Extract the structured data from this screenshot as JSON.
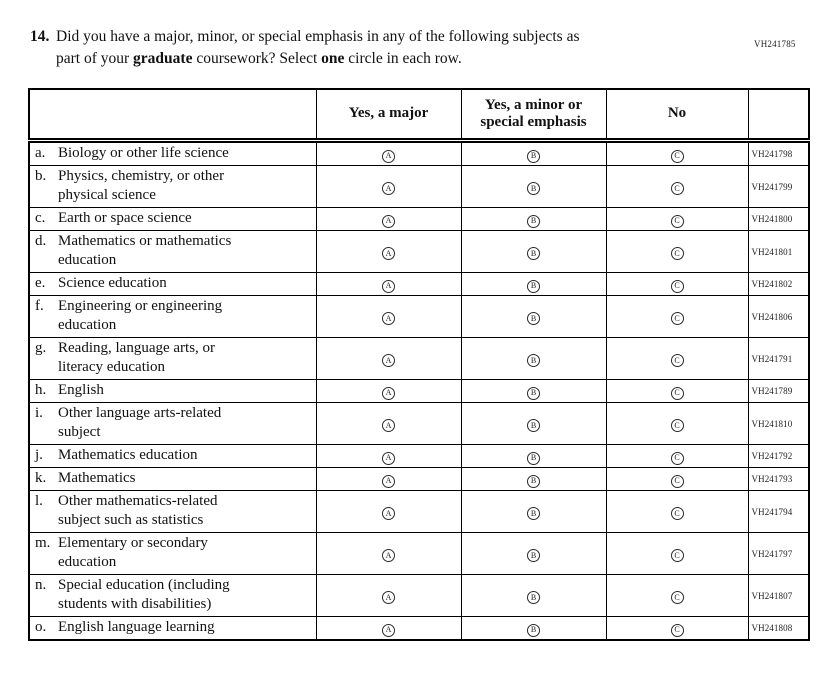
{
  "page_code": "VH241785",
  "question": {
    "number": "14.",
    "line1": "Did you have a major, minor, or special emphasis in any of the following subjects as",
    "line2_seg1": "part of your ",
    "line2_bold1": "graduate",
    "line2_seg2": " coursework? Select ",
    "line2_bold2": "one",
    "line2_seg3": " circle in each row."
  },
  "table": {
    "headers": {
      "subject": "",
      "major": "Yes, a major",
      "minor": "Yes, a minor or special emphasis",
      "no": "No",
      "code": ""
    },
    "options": {
      "major": "A",
      "minor": "B",
      "no": "C"
    },
    "rows": [
      {
        "prefix": "a.",
        "line1": "Biology or other life science",
        "line2": "",
        "code": "VH241798"
      },
      {
        "prefix": "b.",
        "line1": "Physics, chemistry, or other",
        "line2": "physical science",
        "code": "VH241799"
      },
      {
        "prefix": "c.",
        "line1": "Earth or space science",
        "line2": "",
        "code": "VH241800"
      },
      {
        "prefix": "d.",
        "line1": "Mathematics or mathematics",
        "line2": "education",
        "code": "VH241801"
      },
      {
        "prefix": "e.",
        "line1": "Science education",
        "line2": "",
        "code": "VH241802"
      },
      {
        "prefix": "f.",
        "line1": "Engineering or engineering",
        "line2": "education",
        "code": "VH241806"
      },
      {
        "prefix": "g.",
        "line1": "Reading, language arts, or",
        "line2": "literacy education",
        "code": "VH241791"
      },
      {
        "prefix": "h.",
        "line1": "English",
        "line2": "",
        "code": "VH241789"
      },
      {
        "prefix": "i.",
        "line1": "Other language arts-related",
        "line2": "subject",
        "code": "VH241810"
      },
      {
        "prefix": "j.",
        "line1": "Mathematics education",
        "line2": "",
        "code": "VH241792"
      },
      {
        "prefix": "k.",
        "line1": "Mathematics",
        "line2": "",
        "code": "VH241793"
      },
      {
        "prefix": "l.",
        "line1": "Other mathematics-related",
        "line2": "subject such as statistics",
        "code": "VH241794"
      },
      {
        "prefix": "m.",
        "line1": "Elementary or secondary",
        "line2": "education",
        "code": "VH241797"
      },
      {
        "prefix": "n.",
        "line1": "Special education (including",
        "line2": "students with disabilities)",
        "code": "VH241807"
      },
      {
        "prefix": "o.",
        "line1": "English language learning",
        "line2": "",
        "code": "VH241808"
      }
    ]
  }
}
